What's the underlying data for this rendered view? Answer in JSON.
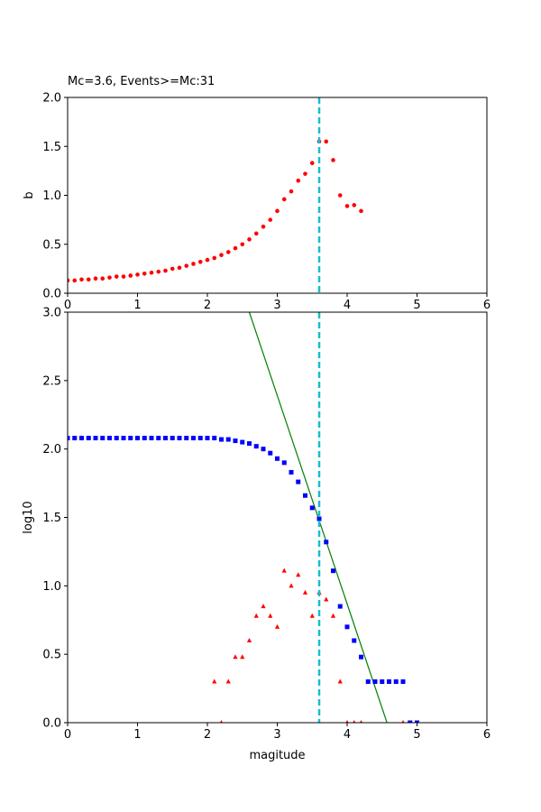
{
  "chart_data": [
    {
      "type": "scatter",
      "title": "Mc=3.6, Events>=Mc:31",
      "xlabel": "",
      "ylabel": "b",
      "xlim": [
        0,
        6
      ],
      "ylim": [
        0,
        2.0
      ],
      "xticks": [
        "0",
        "1",
        "2",
        "3",
        "4",
        "5",
        "6"
      ],
      "yticks": [
        "0.0",
        "0.5",
        "1.0",
        "1.5",
        "2.0"
      ],
      "grid": false,
      "mc_line": {
        "x": 3.6,
        "color": "#17becf",
        "style": "dashed"
      },
      "series": [
        {
          "marker": "circle",
          "color": "#ff0000",
          "x": [
            0.0,
            0.1,
            0.2,
            0.3,
            0.4,
            0.5,
            0.6,
            0.7,
            0.8,
            0.9,
            1.0,
            1.1,
            1.2,
            1.3,
            1.4,
            1.5,
            1.6,
            1.7,
            1.8,
            1.9,
            2.0,
            2.1,
            2.2,
            2.3,
            2.4,
            2.5,
            2.6,
            2.7,
            2.8,
            2.9,
            3.0,
            3.1,
            3.2,
            3.3,
            3.4,
            3.5,
            3.6,
            3.7,
            3.8,
            3.9,
            4.0,
            4.1,
            4.2
          ],
          "y": [
            0.13,
            0.13,
            0.14,
            0.14,
            0.15,
            0.15,
            0.16,
            0.17,
            0.17,
            0.18,
            0.19,
            0.2,
            0.21,
            0.22,
            0.23,
            0.25,
            0.26,
            0.28,
            0.3,
            0.32,
            0.34,
            0.36,
            0.39,
            0.42,
            0.46,
            0.5,
            0.55,
            0.61,
            0.68,
            0.75,
            0.84,
            0.96,
            1.04,
            1.15,
            1.22,
            1.33,
            1.55,
            1.55,
            1.36,
            1.0,
            0.89,
            0.9,
            0.84
          ]
        }
      ]
    },
    {
      "type": "scatter",
      "title": "",
      "xlabel": "magitude",
      "ylabel": "log10",
      "xlim": [
        0,
        6
      ],
      "ylim": [
        0,
        3.0
      ],
      "xticks": [
        "0",
        "1",
        "2",
        "3",
        "4",
        "5",
        "6"
      ],
      "yticks": [
        "0.0",
        "0.5",
        "1.0",
        "1.5",
        "2.0",
        "2.5",
        "3.0"
      ],
      "grid": false,
      "mc_line": {
        "x": 3.6,
        "color": "#17becf",
        "style": "dashed"
      },
      "fit_line": {
        "x": [
          2.6,
          4.57
        ],
        "y": [
          3.0,
          0.0
        ],
        "color": "#008000"
      },
      "series": [
        {
          "marker": "square",
          "color": "#0000ff",
          "x": [
            0.0,
            0.1,
            0.2,
            0.3,
            0.4,
            0.5,
            0.6,
            0.7,
            0.8,
            0.9,
            1.0,
            1.1,
            1.2,
            1.3,
            1.4,
            1.5,
            1.6,
            1.7,
            1.8,
            1.9,
            2.0,
            2.1,
            2.2,
            2.3,
            2.4,
            2.5,
            2.6,
            2.7,
            2.8,
            2.9,
            3.0,
            3.1,
            3.2,
            3.3,
            3.4,
            3.5,
            3.6,
            3.7,
            3.8,
            3.9,
            4.0,
            4.1,
            4.2,
            4.3,
            4.4,
            4.5,
            4.6,
            4.7,
            4.8,
            4.9,
            5.0
          ],
          "y": [
            2.08,
            2.08,
            2.08,
            2.08,
            2.08,
            2.08,
            2.08,
            2.08,
            2.08,
            2.08,
            2.08,
            2.08,
            2.08,
            2.08,
            2.08,
            2.08,
            2.08,
            2.08,
            2.08,
            2.08,
            2.08,
            2.08,
            2.07,
            2.07,
            2.06,
            2.05,
            2.04,
            2.02,
            2.0,
            1.97,
            1.93,
            1.9,
            1.83,
            1.76,
            1.66,
            1.57,
            1.49,
            1.32,
            1.11,
            0.85,
            0.7,
            0.6,
            0.48,
            0.3,
            0.3,
            0.3,
            0.3,
            0.3,
            0.3,
            0.0,
            0.0
          ]
        },
        {
          "marker": "triangle",
          "color": "#ff0000",
          "x": [
            2.1,
            2.2,
            2.3,
            2.4,
            2.5,
            2.6,
            2.7,
            2.8,
            2.9,
            3.0,
            3.1,
            3.2,
            3.3,
            3.4,
            3.5,
            3.6,
            3.7,
            3.8,
            3.9,
            4.0,
            4.1,
            4.2,
            4.8
          ],
          "y": [
            0.3,
            0.0,
            0.3,
            0.48,
            0.48,
            0.6,
            0.78,
            0.85,
            0.78,
            0.7,
            1.11,
            1.0,
            1.08,
            0.95,
            0.78,
            0.95,
            0.9,
            0.78,
            0.3,
            0.0,
            0.0,
            0.0,
            0.0
          ]
        }
      ]
    }
  ]
}
